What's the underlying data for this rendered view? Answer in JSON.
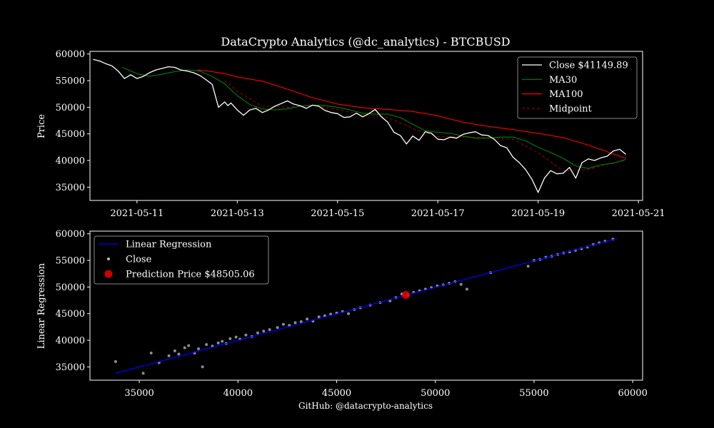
{
  "title": "DataCrypto Analytics (@dc_analytics) - BTCBUSD",
  "footer": "GitHub: @datacrypto-analytics",
  "chart_data": [
    {
      "type": "line",
      "ylabel": "Price",
      "ylim": [
        32500,
        60500
      ],
      "yticks": [
        35000,
        40000,
        45000,
        50000,
        55000,
        60000
      ],
      "xticks": [
        "2021-05-11",
        "2021-05-13",
        "2021-05-15",
        "2021-05-17",
        "2021-05-19",
        "2021-05-21"
      ],
      "xlim": [
        "2021-05-10 01:30",
        "2021-05-21 02:00"
      ],
      "legend_position": "top-right",
      "series": [
        {
          "name": "Close $41149.89",
          "color": "#ffffff",
          "x": [
            "2021-05-10 03:00",
            "2021-05-10 06:00",
            "2021-05-10 09:00",
            "2021-05-10 12:00",
            "2021-05-10 15:00",
            "2021-05-10 18:00",
            "2021-05-10 21:00",
            "2021-05-11 00:00",
            "2021-05-11 03:00",
            "2021-05-11 06:00",
            "2021-05-11 09:00",
            "2021-05-11 12:00",
            "2021-05-11 15:00",
            "2021-05-11 18:00",
            "2021-05-11 21:00",
            "2021-05-12 00:00",
            "2021-05-12 03:00",
            "2021-05-12 06:00",
            "2021-05-12 09:00",
            "2021-05-12 12:00",
            "2021-05-12 15:00",
            "2021-05-12 18:00",
            "2021-05-12 19:30",
            "2021-05-12 21:00",
            "2021-05-13 00:00",
            "2021-05-13 03:00",
            "2021-05-13 06:00",
            "2021-05-13 09:00",
            "2021-05-13 12:00",
            "2021-05-13 15:00",
            "2021-05-13 18:00",
            "2021-05-13 21:00",
            "2021-05-14 00:00",
            "2021-05-14 03:00",
            "2021-05-14 06:00",
            "2021-05-14 09:00",
            "2021-05-14 12:00",
            "2021-05-14 15:00",
            "2021-05-14 18:00",
            "2021-05-14 21:00",
            "2021-05-15 00:00",
            "2021-05-15 03:00",
            "2021-05-15 06:00",
            "2021-05-15 09:00",
            "2021-05-15 12:00",
            "2021-05-15 15:00",
            "2021-05-15 18:00",
            "2021-05-15 21:00",
            "2021-05-16 00:00",
            "2021-05-16 03:00",
            "2021-05-16 06:00",
            "2021-05-16 09:00",
            "2021-05-16 12:00",
            "2021-05-16 15:00",
            "2021-05-16 18:00",
            "2021-05-16 21:00",
            "2021-05-17 00:00",
            "2021-05-17 03:00",
            "2021-05-17 06:00",
            "2021-05-17 09:00",
            "2021-05-17 12:00",
            "2021-05-17 15:00",
            "2021-05-17 18:00",
            "2021-05-17 21:00",
            "2021-05-18 00:00",
            "2021-05-18 03:00",
            "2021-05-18 06:00",
            "2021-05-18 09:00",
            "2021-05-18 12:00",
            "2021-05-18 15:00",
            "2021-05-18 18:00",
            "2021-05-18 21:00",
            "2021-05-19 00:00",
            "2021-05-19 03:00",
            "2021-05-19 06:00",
            "2021-05-19 09:00",
            "2021-05-19 12:00",
            "2021-05-19 15:00",
            "2021-05-19 18:00",
            "2021-05-19 21:00",
            "2021-05-20 00:00",
            "2021-05-20 03:00",
            "2021-05-20 06:00",
            "2021-05-20 09:00",
            "2021-05-20 12:00",
            "2021-05-20 15:00",
            "2021-05-20 18:00"
          ],
          "values": [
            59000,
            58700,
            58200,
            57800,
            56800,
            55400,
            56100,
            55400,
            55800,
            56500,
            57000,
            57300,
            57600,
            57500,
            57000,
            56800,
            56500,
            56000,
            55200,
            54300,
            50000,
            51000,
            50300,
            50800,
            49500,
            48500,
            49500,
            49800,
            49000,
            49500,
            50200,
            50700,
            51200,
            50600,
            50300,
            49800,
            50400,
            50200,
            49400,
            49000,
            48800,
            48100,
            48200,
            48900,
            48200,
            48800,
            49600,
            48200,
            47200,
            45300,
            44700,
            43100,
            44600,
            43800,
            45400,
            45100,
            44000,
            43900,
            44400,
            44200,
            44900,
            45200,
            45400,
            44800,
            44700,
            44000,
            42800,
            42400,
            40600,
            39600,
            38300,
            36500,
            34000,
            36700,
            38100,
            37500,
            37600,
            38700,
            36700,
            39600,
            40300,
            40000,
            40500,
            40800,
            41800,
            42100,
            41150
          ]
        },
        {
          "name": "MA30",
          "color": "#008000",
          "x": [
            "2021-05-10 17:00",
            "2021-05-11 00:00",
            "2021-05-11 06:00",
            "2021-05-11 12:00",
            "2021-05-11 18:00",
            "2021-05-12 00:00",
            "2021-05-12 06:00",
            "2021-05-12 12:00",
            "2021-05-12 18:00",
            "2021-05-13 00:00",
            "2021-05-13 06:00",
            "2021-05-13 12:00",
            "2021-05-13 18:00",
            "2021-05-14 00:00",
            "2021-05-14 06:00",
            "2021-05-14 12:00",
            "2021-05-14 18:00",
            "2021-05-15 00:00",
            "2021-05-15 06:00",
            "2021-05-15 12:00",
            "2021-05-15 18:00",
            "2021-05-16 00:00",
            "2021-05-16 06:00",
            "2021-05-16 12:00",
            "2021-05-16 18:00",
            "2021-05-17 00:00",
            "2021-05-17 06:00",
            "2021-05-17 12:00",
            "2021-05-17 18:00",
            "2021-05-18 00:00",
            "2021-05-18 06:00",
            "2021-05-18 12:00",
            "2021-05-18 18:00",
            "2021-05-19 00:00",
            "2021-05-19 06:00",
            "2021-05-19 12:00",
            "2021-05-19 18:00",
            "2021-05-20 00:00",
            "2021-05-20 06:00",
            "2021-05-20 12:00",
            "2021-05-20 18:00"
          ],
          "values": [
            57500,
            56300,
            55800,
            56200,
            56700,
            57000,
            56800,
            55800,
            54400,
            52200,
            50500,
            49700,
            49500,
            49700,
            50200,
            50400,
            50300,
            50000,
            49500,
            48900,
            48700,
            48700,
            48100,
            46800,
            45600,
            45300,
            45100,
            44600,
            44200,
            44200,
            44400,
            44400,
            43700,
            42500,
            41500,
            40400,
            39000,
            38500,
            39200,
            39500,
            40200
          ]
        },
        {
          "name": "MA100",
          "color": "#ff0000",
          "x": [
            "2021-05-12 05:00",
            "2021-05-12 12:00",
            "2021-05-12 18:00",
            "2021-05-13 00:00",
            "2021-05-13 12:00",
            "2021-05-14 00:00",
            "2021-05-14 12:00",
            "2021-05-15 00:00",
            "2021-05-15 12:00",
            "2021-05-16 00:00",
            "2021-05-16 12:00",
            "2021-05-17 00:00",
            "2021-05-17 12:00",
            "2021-05-18 00:00",
            "2021-05-18 12:00",
            "2021-05-19 00:00",
            "2021-05-19 12:00",
            "2021-05-20 00:00",
            "2021-05-20 18:00"
          ],
          "values": [
            57000,
            56700,
            56300,
            55700,
            54900,
            53400,
            51800,
            50600,
            49900,
            49600,
            49200,
            48400,
            47200,
            46400,
            45800,
            45100,
            44300,
            42900,
            40400
          ]
        },
        {
          "name": "Midpoint",
          "color": "#8b0000",
          "dashed": true,
          "x": [
            "2021-05-12 18:00",
            "2021-05-13 00:00",
            "2021-05-13 12:00",
            "2021-05-14 00:00",
            "2021-05-14 12:00",
            "2021-05-15 00:00",
            "2021-05-15 12:00",
            "2021-05-16 00:00",
            "2021-05-16 12:00",
            "2021-05-17 00:00",
            "2021-05-17 12:00",
            "2021-05-18 00:00",
            "2021-05-18 12:00",
            "2021-05-19 00:00",
            "2021-05-19 12:00",
            "2021-05-20 00:00",
            "2021-05-20 12:00",
            "2021-05-20 18:00"
          ],
          "values": [
            55000,
            53000,
            50200,
            50000,
            50400,
            49600,
            48600,
            48100,
            46000,
            44500,
            44400,
            44300,
            44000,
            41500,
            38000,
            38300,
            39600,
            40000
          ]
        }
      ]
    },
    {
      "type": "scatter",
      "ylabel": "Linear Regression",
      "xlim": [
        32500,
        60500
      ],
      "ylim": [
        32500,
        60500
      ],
      "xticks": [
        35000,
        40000,
        45000,
        50000,
        55000,
        60000
      ],
      "yticks": [
        35000,
        40000,
        45000,
        50000,
        55000,
        60000
      ],
      "legend_position": "top-left",
      "regression": {
        "name": "Linear Regression",
        "color": "#0000ff",
        "x": [
          33800,
          59200
        ],
        "y": [
          33800,
          59100
        ]
      },
      "points": {
        "name": "Close",
        "color": "#bbbbbb",
        "x": [
          33800,
          35200,
          35600,
          36000,
          36500,
          36800,
          37000,
          37300,
          37500,
          37800,
          38000,
          38200,
          38400,
          38700,
          39000,
          39200,
          39400,
          39600,
          39900,
          40100,
          40400,
          40700,
          41000,
          41300,
          41600,
          42000,
          42300,
          42600,
          42900,
          43200,
          43500,
          43800,
          44100,
          44400,
          44700,
          45000,
          45300,
          45600,
          45900,
          46200,
          46700,
          47200,
          47700,
          48000,
          48300,
          48600,
          48900,
          49200,
          49500,
          49800,
          50100,
          50400,
          50700,
          51000,
          51300,
          51600,
          52800,
          54700,
          55000,
          55300,
          55600,
          55900,
          56200,
          56500,
          56800,
          57100,
          57400,
          57700,
          58000,
          58300,
          58600,
          59000
        ],
        "y": [
          36000,
          33800,
          37600,
          35800,
          37100,
          38000,
          37400,
          38600,
          39000,
          37600,
          38400,
          35000,
          39200,
          38900,
          39500,
          39800,
          39400,
          40300,
          40600,
          40200,
          41000,
          40700,
          41400,
          41700,
          42000,
          42400,
          43000,
          42800,
          43300,
          43500,
          44000,
          43600,
          44400,
          44600,
          44900,
          45100,
          45400,
          45000,
          45800,
          46100,
          46600,
          47100,
          47400,
          48000,
          48700,
          48500,
          49000,
          49300,
          49600,
          49900,
          50200,
          50400,
          50700,
          51000,
          50500,
          49600,
          52700,
          53900,
          55000,
          55200,
          55600,
          55800,
          56100,
          56400,
          56600,
          56900,
          57200,
          57500,
          58000,
          58300,
          58600,
          59000
        ]
      },
      "prediction": {
        "name": "Prediction Price $48505.06",
        "color": "#ff0000",
        "x": 48505.06,
        "y": 48505.06
      }
    }
  ]
}
